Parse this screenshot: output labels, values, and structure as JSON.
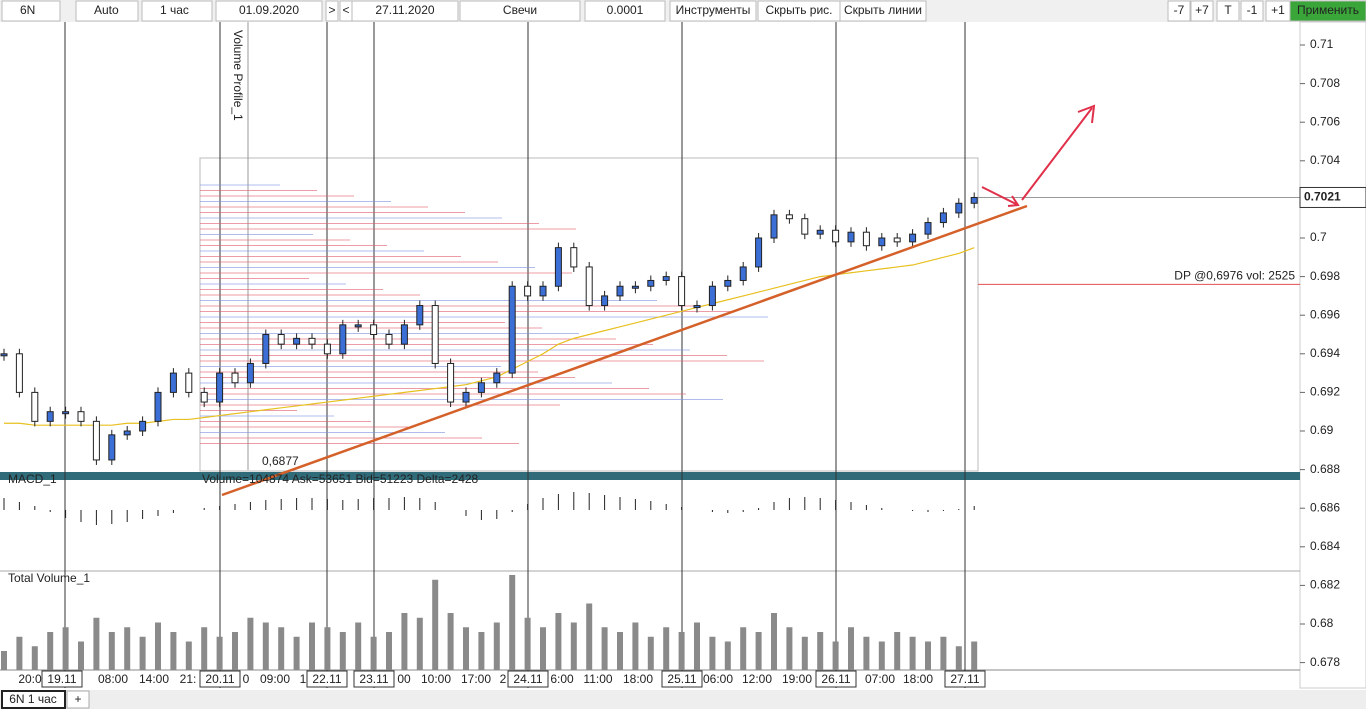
{
  "toolbar": {
    "symbol": "6N",
    "mode": "Auto",
    "period": "1 час",
    "from": "01.09.2020",
    "next": ">",
    "prev": "<",
    "to": "27.11.2020",
    "chart_style": "Свечи",
    "step": "0.0001",
    "tools": "Инструменты",
    "hide_drawings": "Скрыть рис.",
    "hide_lines": "Скрыть линии",
    "minus7": "-7",
    "plus7": "+7",
    "t": "T",
    "minus1": "-1",
    "plus1": "+1",
    "apply": "Применить"
  },
  "chart_data": {
    "type": "candlestick",
    "yticks": [
      0.71,
      0.708,
      0.706,
      0.704,
      0.702,
      0.7,
      0.698,
      0.696,
      0.694,
      0.692,
      0.69,
      0.688,
      0.686,
      0.684,
      0.682,
      0.68,
      0.678
    ],
    "ylim": [
      0.6779,
      0.7112
    ],
    "close": [
      0.694,
      0.692,
      0.6905,
      0.691,
      0.691,
      0.6905,
      0.6885,
      0.6898,
      0.69,
      0.6905,
      0.692,
      0.693,
      0.692,
      0.6915,
      0.693,
      0.6925,
      0.6935,
      0.695,
      0.6945,
      0.6948,
      0.6945,
      0.694,
      0.6955,
      0.6955,
      0.695,
      0.6945,
      0.6955,
      0.6965,
      0.6935,
      0.6915,
      0.692,
      0.6925,
      0.693,
      0.6975,
      0.697,
      0.6975,
      0.6995,
      0.6985,
      0.6965,
      0.697,
      0.6975,
      0.6975,
      0.6978,
      0.698,
      0.6965,
      0.6965,
      0.6975,
      0.6978,
      0.6985,
      0.7,
      0.7012,
      0.701,
      0.7002,
      0.7004,
      0.6998,
      0.7003,
      0.6996,
      0.7,
      0.6998,
      0.7002,
      0.7008,
      0.7013,
      0.7018,
      0.7021
    ],
    "ma": [
      0.6904,
      0.6904,
      0.6903,
      0.6903,
      0.6903,
      0.6903,
      0.6903,
      0.6903,
      0.6904,
      0.6904,
      0.6905,
      0.6906,
      0.6906,
      0.6907,
      0.6908,
      0.6909,
      0.691,
      0.6911,
      0.6912,
      0.6913,
      0.6914,
      0.6915,
      0.6916,
      0.6917,
      0.6918,
      0.6919,
      0.692,
      0.6921,
      0.6922,
      0.6923,
      0.6924,
      0.6926,
      0.6928,
      0.6932,
      0.6936,
      0.694,
      0.6945,
      0.6948,
      0.695,
      0.6952,
      0.6954,
      0.6956,
      0.6958,
      0.696,
      0.6962,
      0.6964,
      0.6966,
      0.6968,
      0.697,
      0.6972,
      0.6974,
      0.6976,
      0.6978,
      0.698,
      0.6981,
      0.6982,
      0.6983,
      0.6984,
      0.6985,
      0.6986,
      0.6988,
      0.699,
      0.6992,
      0.6995
    ],
    "volume": [
      20,
      35,
      25,
      40,
      45,
      30,
      55,
      40,
      45,
      35,
      50,
      40,
      30,
      45,
      35,
      40,
      55,
      50,
      45,
      35,
      50,
      45,
      40,
      50,
      35,
      40,
      60,
      55,
      95,
      60,
      45,
      40,
      50,
      100,
      55,
      45,
      60,
      50,
      70,
      45,
      40,
      50,
      35,
      45,
      40,
      50,
      35,
      30,
      45,
      40,
      60,
      45,
      35,
      40,
      30,
      45,
      35,
      30,
      40,
      35,
      30,
      35,
      25,
      30
    ],
    "macd": [
      12,
      8,
      4,
      -2,
      -8,
      -12,
      -15,
      -14,
      -12,
      -9,
      -6,
      -3,
      0,
      2,
      4,
      6,
      8,
      10,
      11,
      12,
      12,
      11,
      10,
      11,
      12,
      12,
      13,
      12,
      8,
      0,
      -6,
      -10,
      -9,
      -2,
      6,
      12,
      16,
      18,
      17,
      15,
      13,
      11,
      9,
      6,
      3,
      0,
      -2,
      -3,
      -2,
      2,
      8,
      12,
      13,
      12,
      10,
      8,
      5,
      2,
      0,
      -1,
      -2,
      -1,
      1,
      4
    ],
    "ref_price": "0,6877",
    "last_price": "0.7021",
    "dp_label": "DP @0,6976 vol: 2525",
    "dp_price": 0.6976,
    "last": 0.7021,
    "profile_title": "Volume Profile_1",
    "profile_stats": "Volume=104874  Ask=53651  Bid=51223  Delta=2428",
    "macd_title": "MACD_1",
    "volume_title": "Total Volume_1",
    "time_labels": [
      "20:0",
      "19.11",
      "08:00",
      "14:00",
      "21:",
      "20.11",
      "0",
      "09:00",
      "1",
      "22.11",
      "23.11",
      "00",
      "10:00",
      "17:00",
      "2",
      "24.11",
      "6:00",
      "11:00",
      "18:00",
      "25.11",
      "06:00",
      "12:00",
      "19:00",
      "26.11",
      "07:00",
      "18:00",
      "27.11"
    ]
  },
  "tabs": {
    "active": "6N 1 час",
    "add": "+"
  }
}
